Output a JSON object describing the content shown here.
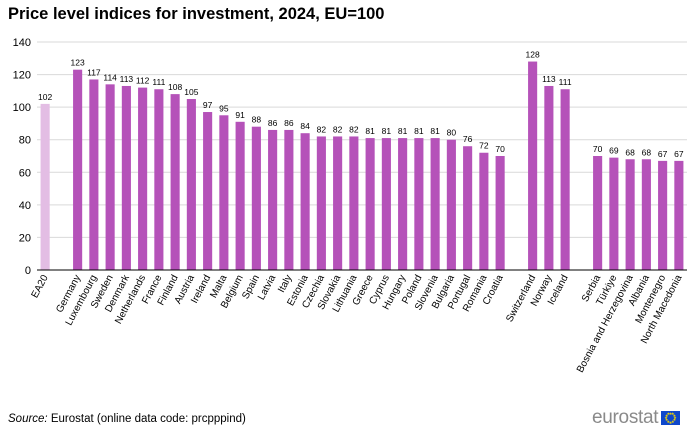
{
  "title": "Price level indices for investment, 2024, EU=100",
  "source": {
    "label": "Source:",
    "text": " Eurostat (online data code: prcpppind)"
  },
  "logo": {
    "text": "eurostat"
  },
  "colors": {
    "bar": "#b552b9",
    "bar_highlight": "#e3bde4",
    "grid": "#d9d9d9",
    "axis": "#000000"
  },
  "chart_data": {
    "type": "bar",
    "title": "Price level indices for investment, 2024, EU=100",
    "xlabel": "",
    "ylabel": "",
    "ylim": [
      0,
      140
    ],
    "yticks": [
      0,
      20,
      40,
      60,
      80,
      100,
      120,
      140
    ],
    "grid": true,
    "legend": "none",
    "groups": [
      [
        "EA20"
      ],
      [
        "Germany",
        "Luxembourg",
        "Sweden",
        "Denmark",
        "Netherlands",
        "France",
        "Finland",
        "Austria",
        "Ireland",
        "Malta",
        "Belgium",
        "Spain",
        "Latvia",
        "Italy",
        "Estonia",
        "Czechia",
        "Slovakia",
        "Lithuania",
        "Greece",
        "Cyprus",
        "Hungary",
        "Poland",
        "Slovenia",
        "Bulgaria",
        "Portugal",
        "Romania",
        "Croatia"
      ],
      [
        "Switzerland",
        "Norway",
        "Iceland"
      ],
      [
        "Serbia",
        "Türkiye",
        "Bosnia and Herzegovina",
        "Albania",
        "Montenegro",
        "North Macedonia"
      ]
    ],
    "categories": [
      "EA20",
      "Germany",
      "Luxembourg",
      "Sweden",
      "Denmark",
      "Netherlands",
      "France",
      "Finland",
      "Austria",
      "Ireland",
      "Malta",
      "Belgium",
      "Spain",
      "Latvia",
      "Italy",
      "Estonia",
      "Czechia",
      "Slovakia",
      "Lithuania",
      "Greece",
      "Cyprus",
      "Hungary",
      "Poland",
      "Slovenia",
      "Bulgaria",
      "Portugal",
      "Romania",
      "Croatia",
      "Switzerland",
      "Norway",
      "Iceland",
      "Serbia",
      "Türkiye",
      "Bosnia and Herzegovina",
      "Albania",
      "Montenegro",
      "North Macedonia"
    ],
    "values": [
      102,
      123,
      117,
      114,
      113,
      112,
      111,
      108,
      105,
      97,
      95,
      91,
      88,
      86,
      86,
      84,
      82,
      82,
      82,
      81,
      81,
      81,
      81,
      81,
      80,
      76,
      72,
      70,
      128,
      113,
      111,
      70,
      69,
      68,
      68,
      67,
      67
    ],
    "highlight": [
      "EA20"
    ]
  }
}
